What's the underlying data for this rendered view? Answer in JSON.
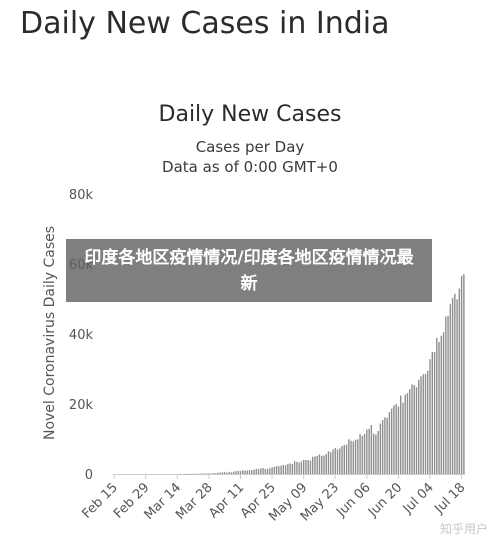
{
  "page": {
    "heading": "Daily New Cases in India",
    "overlay_text": "印度各地区疫情情况/印度各地区疫情情况最新",
    "watermark": "知乎用户"
  },
  "colors": {
    "bars": "#8e8e8e",
    "axis": "#cccccc",
    "overlay": "#5f5f5f"
  },
  "chart_data": {
    "type": "bar",
    "title": "Daily New Cases",
    "subtitle_1": "Cases per Day",
    "subtitle_2": "Data as of 0:00 GMT+0",
    "ylabel": "Novel Coronavirus Daily Cases",
    "xlabel": "",
    "ylim": [
      0,
      80000
    ],
    "y_ticks": [
      "0",
      "20k",
      "40k",
      "60k",
      "80k"
    ],
    "y_tick_values": [
      0,
      20000,
      40000,
      60000,
      80000
    ],
    "x_tick_labels": [
      "Feb 15",
      "Feb 29",
      "Mar 14",
      "Mar 28",
      "Apr 11",
      "Apr 25",
      "May 09",
      "May 23",
      "Jun 06",
      "Jun 20",
      "Jul 04",
      "Jul 18"
    ],
    "x_tick_day_index": [
      0,
      14,
      28,
      42,
      56,
      70,
      84,
      98,
      112,
      126,
      140,
      154
    ],
    "grid": false,
    "legend": "none",
    "values": [
      0,
      0,
      0,
      0,
      0,
      0,
      0,
      0,
      0,
      0,
      0,
      0,
      0,
      0,
      0,
      0,
      0,
      0,
      0,
      0,
      0,
      0,
      0,
      0,
      0,
      0,
      0,
      0,
      0,
      30,
      0,
      20,
      30,
      10,
      60,
      80,
      70,
      80,
      100,
      150,
      190,
      150,
      200,
      130,
      300,
      220,
      360,
      400,
      500,
      520,
      380,
      640,
      500,
      700,
      820,
      900,
      870,
      1000,
      1000,
      1000,
      1100,
      1100,
      1200,
      1500,
      1400,
      1600,
      1700,
      1400,
      1500,
      1600,
      1900,
      2000,
      2300,
      2200,
      2400,
      2600,
      2500,
      2900,
      3000,
      2900,
      3700,
      3500,
      3300,
      3600,
      4000,
      4000,
      4000,
      3800,
      4900,
      5000,
      5200,
      5600,
      5200,
      5300,
      5700,
      6500,
      6200,
      7000,
      7400,
      7000,
      7300,
      8000,
      8300,
      8400,
      9900,
      9500,
      9300,
      9800,
      9900,
      11400,
      10900,
      11500,
      12700,
      12900,
      14000,
      11500,
      11200,
      12300,
      14400,
      15400,
      16200,
      16000,
      17700,
      18700,
      19600,
      20000,
      19300,
      22400,
      20400,
      22700,
      23100,
      24200,
      25600,
      25400,
      24800,
      26900,
      27900,
      28500,
      28600,
      29500,
      32800,
      34900,
      34800,
      38900,
      37700,
      39500,
      40500,
      45000,
      45200,
      48500,
      50300,
      51500,
      49900,
      53000,
      56600,
      57100
    ],
    "_note_removed": true
  }
}
